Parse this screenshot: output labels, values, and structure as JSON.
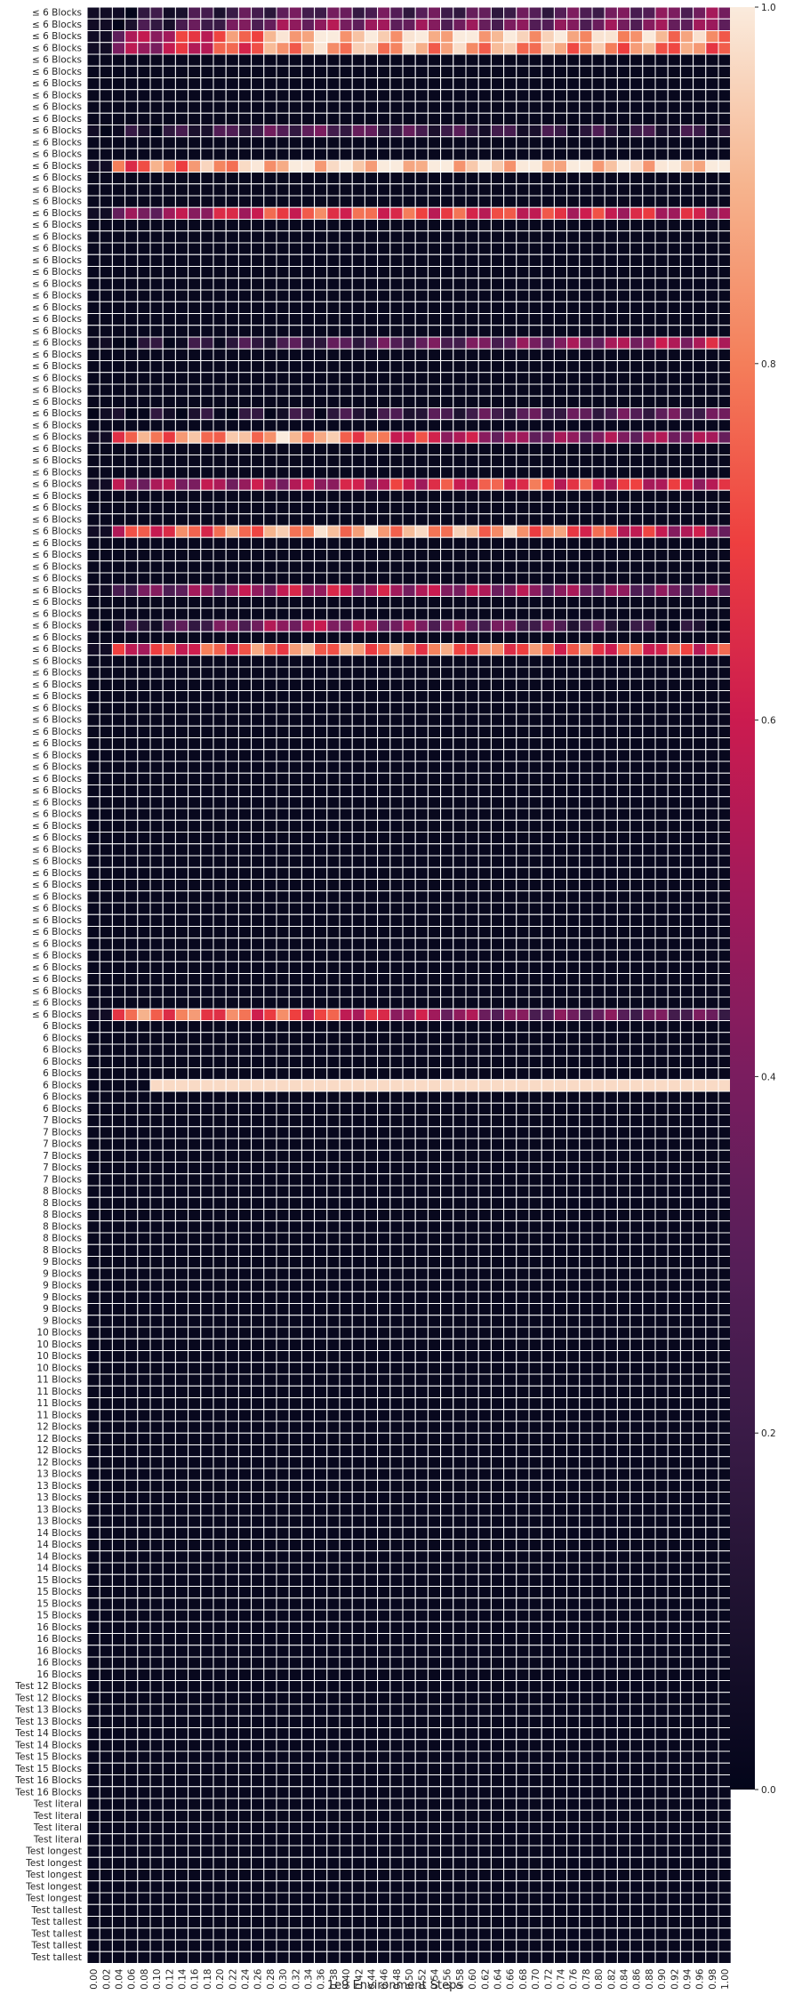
{
  "chart_data": {
    "type": "heatmap",
    "xlabel": "1e9 Environment Steps",
    "x_ticks": [
      "0.00",
      "0.02",
      "0.04",
      "0.06",
      "0.08",
      "0.10",
      "0.12",
      "0.14",
      "0.16",
      "0.18",
      "0.20",
      "0.22",
      "0.24",
      "0.26",
      "0.28",
      "0.30",
      "0.32",
      "0.34",
      "0.36",
      "0.38",
      "0.40",
      "0.42",
      "0.44",
      "0.46",
      "0.48",
      "0.50",
      "0.52",
      "0.54",
      "0.56",
      "0.58",
      "0.60",
      "0.62",
      "0.64",
      "0.66",
      "0.68",
      "0.70",
      "0.72",
      "0.74",
      "0.76",
      "0.78",
      "0.80",
      "0.82",
      "0.84",
      "0.86",
      "0.88",
      "0.90",
      "0.92",
      "0.94",
      "0.96",
      "0.98",
      "1.00"
    ],
    "row_groups": [
      {
        "label": "≤ 6 Blocks",
        "count": 86
      },
      {
        "label": "6 Blocks",
        "count": 8
      },
      {
        "label": "7 Blocks",
        "count": 6
      },
      {
        "label": "8 Blocks",
        "count": 6
      },
      {
        "label": "9 Blocks",
        "count": 6
      },
      {
        "label": "10 Blocks",
        "count": 4
      },
      {
        "label": "11 Blocks",
        "count": 4
      },
      {
        "label": "12 Blocks",
        "count": 4
      },
      {
        "label": "13 Blocks",
        "count": 5
      },
      {
        "label": "14 Blocks",
        "count": 4
      },
      {
        "label": "15 Blocks",
        "count": 4
      },
      {
        "label": "16 Blocks",
        "count": 5
      },
      {
        "label": "Test 12 Blocks",
        "count": 2
      },
      {
        "label": "Test 13 Blocks",
        "count": 2
      },
      {
        "label": "Test 14 Blocks",
        "count": 2
      },
      {
        "label": "Test 15 Blocks",
        "count": 2
      },
      {
        "label": "Test 16 Blocks",
        "count": 2
      },
      {
        "label": "Test literal",
        "count": 4
      },
      {
        "label": "Test longest",
        "count": 5
      },
      {
        "label": "Test tallest",
        "count": 5
      }
    ],
    "default_value": 0.02,
    "active_rows": [
      {
        "row": 0,
        "pattern": "low",
        "values_sample": [
          0.05,
          0.3,
          0.25,
          0.4
        ]
      },
      {
        "row": 1,
        "pattern": "mid",
        "values_sample": [
          0.05,
          0.45,
          0.35,
          0.42
        ]
      },
      {
        "row": 2,
        "pattern": "high",
        "values_sample": [
          0.35,
          0.95,
          0.95,
          0.85
        ]
      },
      {
        "row": 3,
        "pattern": "high",
        "values_sample": [
          0.35,
          0.88,
          0.85,
          0.78
        ]
      },
      {
        "row": 10,
        "pattern": "low",
        "values_sample": [
          0.02,
          0.3,
          0.15,
          0.15
        ]
      },
      {
        "row": 13,
        "pattern": "very-high",
        "values_sample": [
          0.7,
          0.97,
          0.95,
          0.97
        ]
      },
      {
        "row": 17,
        "pattern": "mid-high",
        "values_sample": [
          0.3,
          0.72,
          0.65,
          0.55
        ]
      },
      {
        "row": 28,
        "pattern": "rising",
        "values_sample": [
          0.02,
          0.22,
          0.35,
          0.55
        ]
      },
      {
        "row": 34,
        "pattern": "low",
        "values_sample": [
          0.02,
          0.12,
          0.25,
          0.3
        ]
      },
      {
        "row": 36,
        "pattern": "mid-high",
        "values_sample": [
          0.75,
          0.9,
          0.4,
          0.45
        ]
      },
      {
        "row": 40,
        "pattern": "mid",
        "values_sample": [
          0.45,
          0.5,
          0.7,
          0.55
        ]
      },
      {
        "row": 44,
        "pattern": "mid-high",
        "values_sample": [
          0.6,
          0.88,
          0.85,
          0.45
        ]
      },
      {
        "row": 49,
        "pattern": "mid",
        "values_sample": [
          0.25,
          0.55,
          0.45,
          0.3
        ]
      },
      {
        "row": 52,
        "pattern": "low",
        "values_sample": [
          0.02,
          0.5,
          0.3,
          0.02
        ]
      },
      {
        "row": 54,
        "pattern": "high",
        "values_sample": [
          0.55,
          0.82,
          0.75,
          0.65
        ]
      },
      {
        "row": 85,
        "pattern": "mid",
        "values_sample": [
          0.8,
          0.7,
          0.35,
          0.3
        ]
      },
      {
        "row": 91,
        "pattern": "constant",
        "values_sample": [
          0.02,
          0.97,
          0.97,
          0.97
        ]
      }
    ],
    "colorbar": {
      "min": 0.0,
      "max": 1.0,
      "ticks": [
        "0.0",
        "0.2",
        "0.4",
        "0.6",
        "0.8",
        "1.0"
      ],
      "colormap": "rocket"
    },
    "grid": true,
    "legend": "colorbar-right",
    "colors": {
      "low": "#03051a",
      "high": "#faebdd",
      "grid_lines": "#ffffff"
    }
  }
}
